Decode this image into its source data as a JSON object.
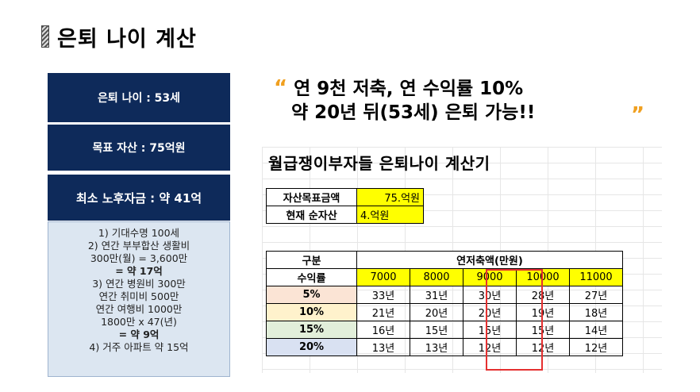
{
  "title": "은퇴 나이 계산",
  "left": {
    "retire_age": "은퇴 나이 : 53세",
    "target_asset": "목표 자산 : 75억원",
    "min_fund": "최소 노후자금 : 약 41억",
    "notes": [
      {
        "text": "1) 기대수명 100세",
        "bold": false
      },
      {
        "text": "2) 연간 부부합산 생활비",
        "bold": false
      },
      {
        "text": "300만(월) = 3,600만",
        "bold": false
      },
      {
        "text": "= 약 17억",
        "bold": true
      },
      {
        "text": "3) 연간 병원비 300만",
        "bold": false
      },
      {
        "text": "연간 취미비 500만",
        "bold": false
      },
      {
        "text": "연간 여행비 1000만",
        "bold": false
      },
      {
        "text": "1800만 x 47(년)",
        "bold": false
      },
      {
        "text": "= 약 9억",
        "bold": true
      },
      {
        "text": "4) 거주 아파트 약 15억",
        "bold": false
      }
    ]
  },
  "quote": {
    "open": "“",
    "close": "”",
    "line1": "연 9천 저축, 연 수익률 10%",
    "line2": "약 20년 뒤(53세) 은퇴 가능!!"
  },
  "sheet": {
    "title": "월급쟁이부자들 은퇴나이 계산기",
    "input": {
      "target_label": "자산목표금액",
      "target_value": "75.억원",
      "current_label": "현재 순자산",
      "current_value": "4.억원"
    },
    "table": {
      "col_header": "구분",
      "group_header": "연저축액(만원)",
      "row_header": "수익률",
      "savings": [
        "7000",
        "8000",
        "9000",
        "10000",
        "11000"
      ],
      "rows": [
        {
          "rate": "5%",
          "years": [
            "33년",
            "31년",
            "30년",
            "28년",
            "27년"
          ]
        },
        {
          "rate": "10%",
          "years": [
            "21년",
            "20년",
            "20년",
            "19년",
            "18년"
          ]
        },
        {
          "rate": "15%",
          "years": [
            "16년",
            "15년",
            "15년",
            "15년",
            "14년"
          ]
        },
        {
          "rate": "20%",
          "years": [
            "13년",
            "13년",
            "12년",
            "12년",
            "12년"
          ]
        }
      ]
    }
  }
}
